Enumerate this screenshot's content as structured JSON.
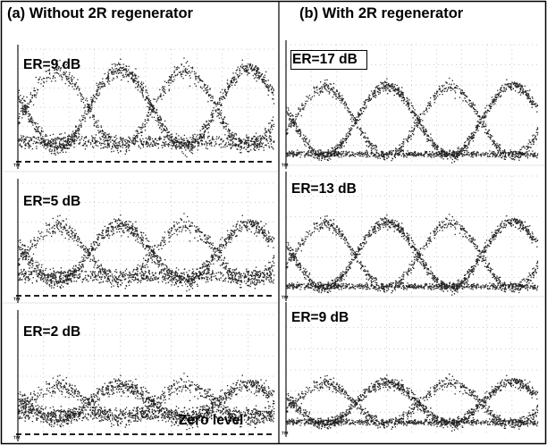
{
  "titles": {
    "left": "(a) Without 2R regenerator",
    "right": "(b) With 2R regenerator"
  },
  "panels": [
    {
      "id": "a1",
      "column": "left",
      "er_label": "ER=9 dB",
      "er_boxed": false,
      "zero_level_dashed": true,
      "amplitude": 0.72,
      "floor_noise": "wide",
      "trace_noise": "high"
    },
    {
      "id": "a2",
      "column": "left",
      "er_label": "ER=5 dB",
      "er_boxed": false,
      "zero_level_dashed": true,
      "amplitude": 0.52,
      "floor_noise": "wide",
      "trace_noise": "high"
    },
    {
      "id": "a3",
      "column": "left",
      "er_label": "ER=2 dB",
      "er_boxed": false,
      "zero_level_dashed": true,
      "amplitude": 0.3,
      "floor_noise": "wide",
      "trace_noise": "high",
      "zero_label": "Zero level"
    },
    {
      "id": "b1",
      "column": "right",
      "er_label": "ER=17 dB",
      "er_boxed": true,
      "zero_level_dashed": false,
      "amplitude": 0.62,
      "floor_noise": "narrow",
      "trace_noise": "medium"
    },
    {
      "id": "b2",
      "column": "right",
      "er_label": "ER=13 dB",
      "er_boxed": false,
      "zero_level_dashed": false,
      "amplitude": 0.58,
      "floor_noise": "narrow",
      "trace_noise": "medium"
    },
    {
      "id": "b3",
      "column": "right",
      "er_label": "ER=9 dB",
      "er_boxed": false,
      "zero_level_dashed": false,
      "amplitude": 0.35,
      "floor_noise": "narrow",
      "trace_noise": "medium"
    }
  ],
  "colors": {
    "trace": "#222222",
    "grid": "#9a9a9a",
    "frame": "#000000",
    "background": "#ffffff"
  }
}
